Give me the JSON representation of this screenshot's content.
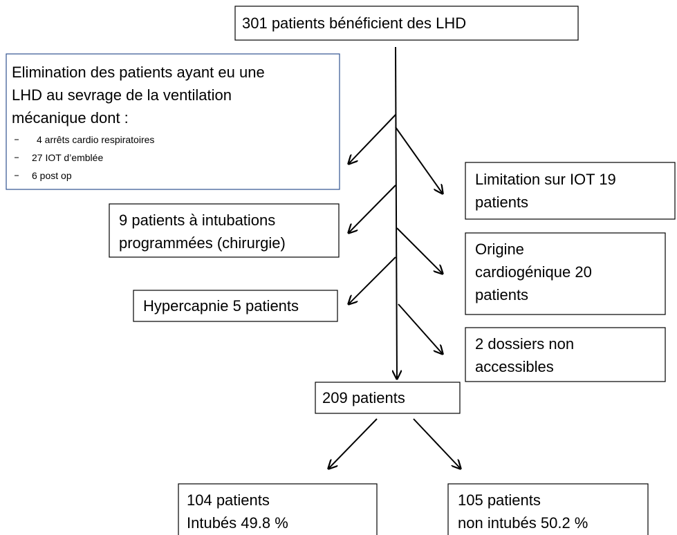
{
  "nodes": [
    {
      "lines": [
        "301 patients bénéficient des LHD"
      ]
    },
    {
      "lines": [
        "Elimination des patients ayant eu  une",
        "LHD au sevrage de la ventilation",
        "mécanique dont :"
      ],
      "items": [
        "4 arrêts cardio respiratoires",
        "27 IOT d’emblée",
        "6 post op"
      ]
    },
    {
      "lines": [
        "Limitation sur IOT 19",
        "patients"
      ]
    },
    {
      "lines": [
        "9 patients à  intubations",
        "programmées (chirurgie)"
      ]
    },
    {
      "lines": [
        "Origine",
        "cardiogénique 20",
        "patients"
      ]
    },
    {
      "lines": [
        "Hypercapnie 5 patients"
      ]
    },
    {
      "lines": [
        "2 dossiers non",
        "accessibles"
      ]
    },
    {
      "lines": [
        "209 patients"
      ]
    },
    {
      "lines": [
        "104 patients",
        "Intubés 49.8 %"
      ]
    },
    {
      "lines": [
        "105 patients",
        "non intubés 50.2 %"
      ]
    }
  ]
}
